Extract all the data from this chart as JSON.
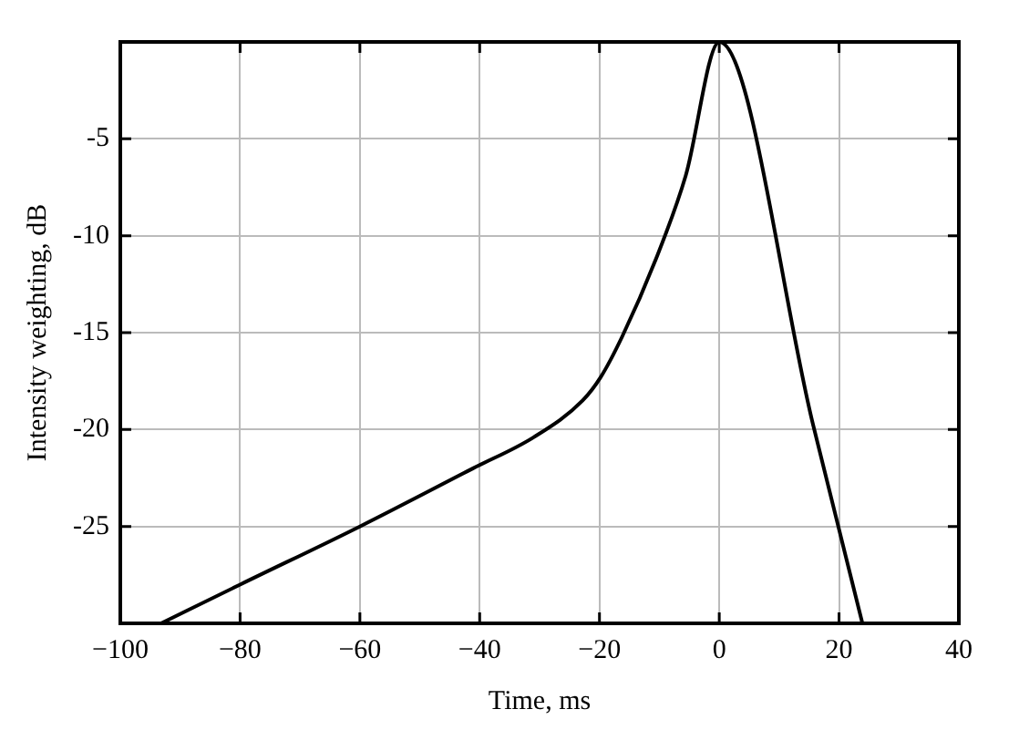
{
  "chart_data": {
    "type": "line",
    "xlabel": "Time, ms",
    "ylabel": "Intensity weighting, dB",
    "x": [
      -93.2,
      -80,
      -60,
      -41.1,
      -31,
      -22.8,
      -19.8,
      -16.2,
      -10.7,
      -5.6,
      0,
      15.7,
      23.9
    ],
    "series": [
      {
        "color": "#000000",
        "values": [
          -30,
          -28,
          -25,
          -22,
          -20.4,
          -18.5,
          -17.3,
          -15.2,
          -11.3,
          -6.9,
          0,
          -19.8,
          -30
        ]
      }
    ],
    "xlim": [
      -100,
      40
    ],
    "xticks": [
      {
        "value": -100,
        "label": "−100"
      },
      {
        "value": -80,
        "label": "−80"
      },
      {
        "value": -60,
        "label": "−60"
      },
      {
        "value": -40,
        "label": "−40"
      },
      {
        "value": -20,
        "label": "−20"
      },
      0,
      20,
      40
    ],
    "ylim": [
      -30,
      0
    ],
    "yticks": [
      {
        "value": -30,
        "label": null
      },
      -25,
      -20,
      -15,
      -10,
      -5,
      {
        "value": 0,
        "label": null
      }
    ],
    "grid": true,
    "marker": "none",
    "line_style": "solid",
    "legend": false
  }
}
